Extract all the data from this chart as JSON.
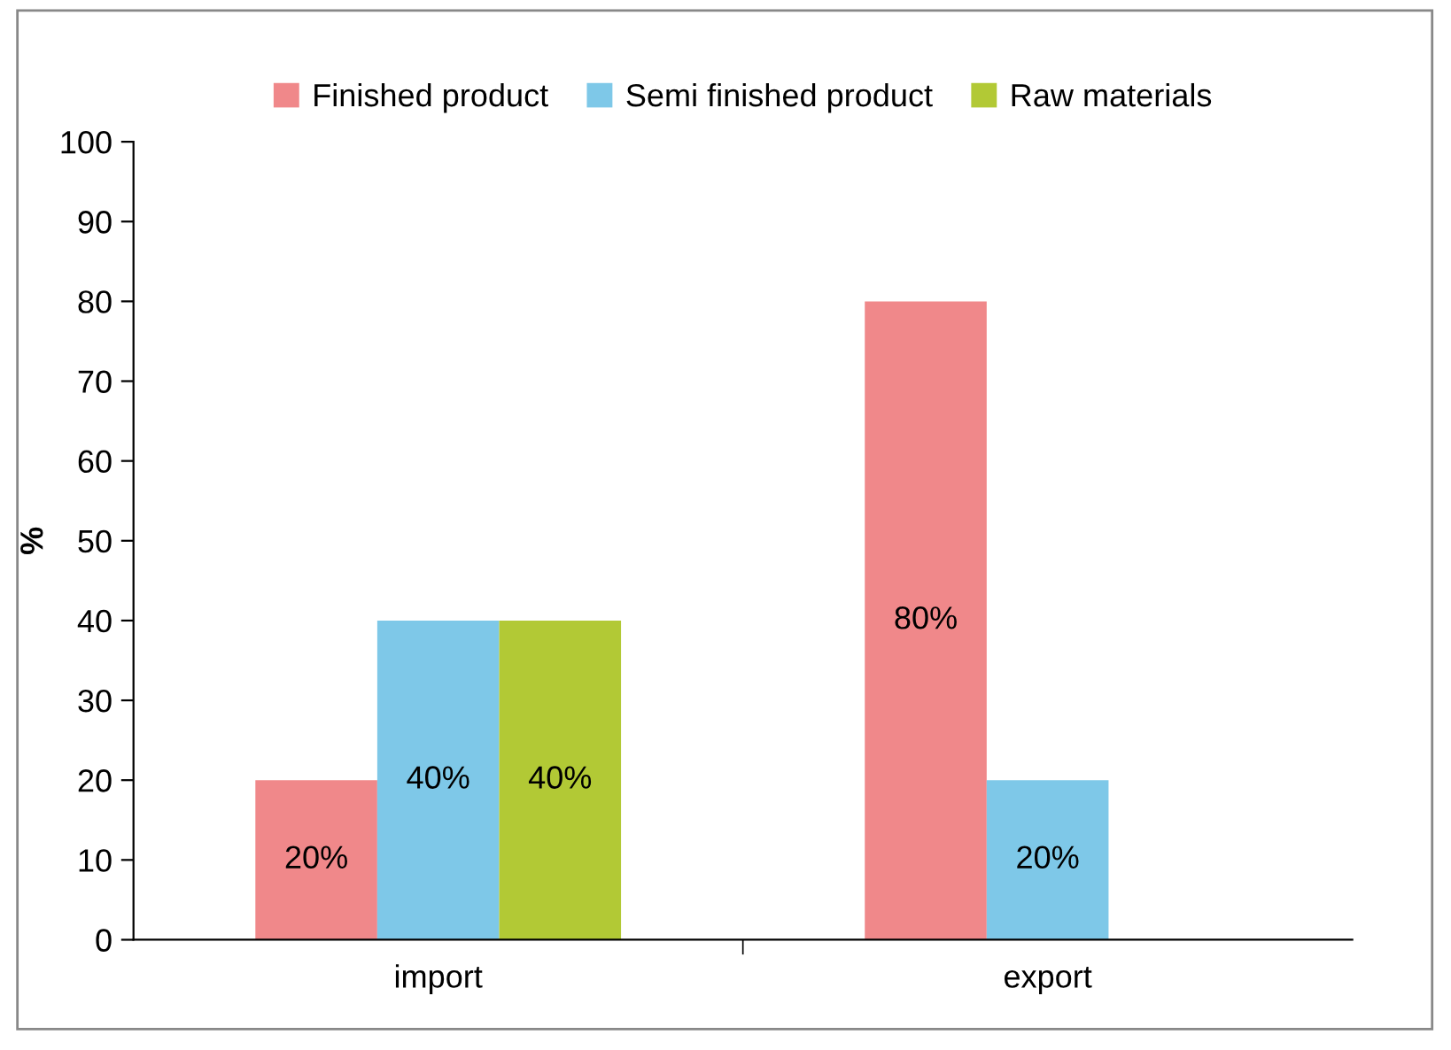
{
  "chart_data": {
    "type": "bar",
    "ylabel": "%",
    "categories": [
      "import",
      "export"
    ],
    "series": [
      {
        "name": "Finished product",
        "color": "#f0888a",
        "values": [
          20,
          80
        ],
        "value_labels": [
          "20%",
          "80%"
        ]
      },
      {
        "name": "Semi finished product",
        "color": "#7ec8e8",
        "values": [
          40,
          20
        ],
        "value_labels": [
          "40%",
          "20%"
        ]
      },
      {
        "name": "Raw materials",
        "color": "#b2c935",
        "values": [
          40,
          null
        ],
        "value_labels": [
          "40%",
          null
        ]
      }
    ],
    "ylim": [
      0,
      100
    ],
    "yticks": [
      0,
      10,
      20,
      30,
      40,
      50,
      60,
      70,
      80,
      90,
      100
    ],
    "grid": false,
    "legend": "top"
  }
}
